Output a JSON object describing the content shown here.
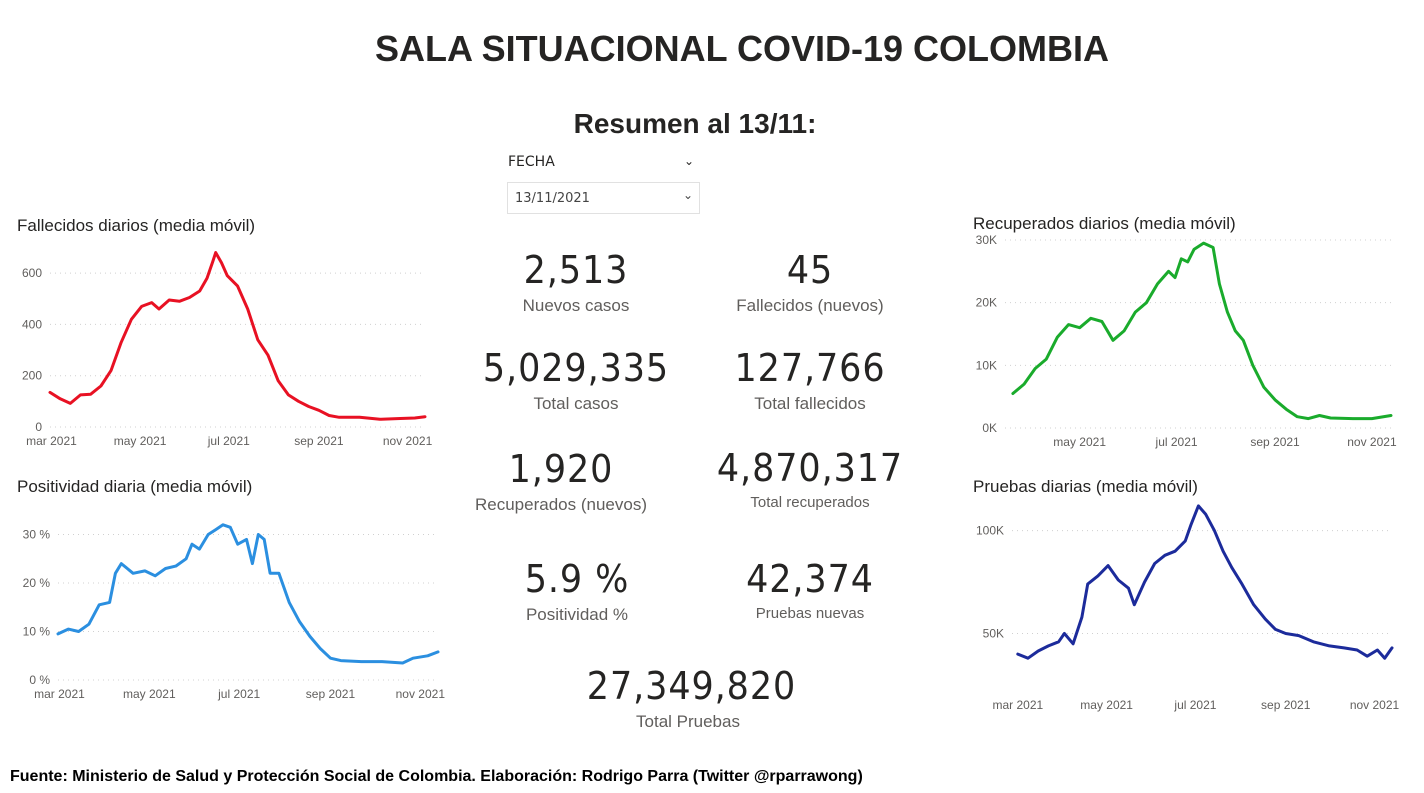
{
  "header": {
    "title": "SALA SITUACIONAL COVID-19 COLOMBIA",
    "subtitle": "Resumen al 13/11:"
  },
  "slicer": {
    "label": "FECHA",
    "value": "13/11/2021"
  },
  "kpis": {
    "nuevos_casos": {
      "value": "2,513",
      "label": "Nuevos casos"
    },
    "fallecidos_nuevos": {
      "value": "45",
      "label": "Fallecidos (nuevos)"
    },
    "total_casos": {
      "value": "5,029,335",
      "label": "Total casos"
    },
    "total_fallecidos": {
      "value": "127,766",
      "label": "Total fallecidos"
    },
    "recuperados_nuevos": {
      "value": "1,920",
      "label": "Recuperados (nuevos)"
    },
    "total_recuperados": {
      "value": "4,870,317",
      "label": "Total recuperados"
    },
    "positividad": {
      "value": "5.9 %",
      "label": "Positividad %"
    },
    "pruebas_nuevas": {
      "value": "42,374",
      "label": "Pruebas nuevas"
    },
    "total_pruebas": {
      "value": "27,349,820",
      "label": "Total Pruebas"
    }
  },
  "chart_data": [
    {
      "id": "fallecidos",
      "type": "line",
      "title": "Fallecidos diarios (media móvil)",
      "color": "#e81123",
      "x_start": "2021-02-28",
      "x_end": "2021-11-13",
      "xticks": [
        "mar 2021",
        "may 2021",
        "jul 2021",
        "sep 2021",
        "nov 2021"
      ],
      "xtick_dates": [
        "2021-03-01",
        "2021-05-01",
        "2021-07-01",
        "2021-09-01",
        "2021-11-01"
      ],
      "yticks": [
        0,
        200,
        400,
        600
      ],
      "ytick_labels": [
        "0",
        "200",
        "400",
        "600"
      ],
      "ylim": [
        0,
        690
      ],
      "points": [
        [
          "2021-02-28",
          135
        ],
        [
          "2021-03-07",
          110
        ],
        [
          "2021-03-14",
          92
        ],
        [
          "2021-03-21",
          125
        ],
        [
          "2021-03-28",
          128
        ],
        [
          "2021-04-04",
          160
        ],
        [
          "2021-04-11",
          220
        ],
        [
          "2021-04-18",
          330
        ],
        [
          "2021-04-25",
          420
        ],
        [
          "2021-05-02",
          470
        ],
        [
          "2021-05-09",
          485
        ],
        [
          "2021-05-14",
          460
        ],
        [
          "2021-05-21",
          495
        ],
        [
          "2021-05-28",
          490
        ],
        [
          "2021-06-04",
          505
        ],
        [
          "2021-06-11",
          530
        ],
        [
          "2021-06-16",
          580
        ],
        [
          "2021-06-20",
          645
        ],
        [
          "2021-06-22",
          680
        ],
        [
          "2021-06-26",
          640
        ],
        [
          "2021-06-30",
          590
        ],
        [
          "2021-07-07",
          550
        ],
        [
          "2021-07-14",
          460
        ],
        [
          "2021-07-21",
          340
        ],
        [
          "2021-07-28",
          280
        ],
        [
          "2021-08-04",
          180
        ],
        [
          "2021-08-11",
          125
        ],
        [
          "2021-08-18",
          100
        ],
        [
          "2021-08-25",
          80
        ],
        [
          "2021-09-01",
          65
        ],
        [
          "2021-09-08",
          45
        ],
        [
          "2021-09-15",
          38
        ],
        [
          "2021-09-29",
          38
        ],
        [
          "2021-10-13",
          30
        ],
        [
          "2021-10-27",
          33
        ],
        [
          "2021-11-06",
          35
        ],
        [
          "2021-11-13",
          40
        ]
      ]
    },
    {
      "id": "positividad",
      "type": "line",
      "title": "Positividad diaria (media móvil)",
      "color": "#2b8fe0",
      "x_start": "2021-02-28",
      "x_end": "2021-11-13",
      "xticks": [
        "mar 2021",
        "may 2021",
        "jul 2021",
        "sep 2021",
        "nov 2021"
      ],
      "xtick_dates": [
        "2021-03-01",
        "2021-05-01",
        "2021-07-01",
        "2021-09-01",
        "2021-11-01"
      ],
      "yticks": [
        0,
        10,
        20,
        30
      ],
      "ytick_labels": [
        "0 %",
        "10 %",
        "20 %",
        "30 %"
      ],
      "ylim": [
        0,
        33
      ],
      "points": [
        [
          "2021-02-28",
          9.5
        ],
        [
          "2021-03-07",
          10.5
        ],
        [
          "2021-03-14",
          10
        ],
        [
          "2021-03-21",
          11.5
        ],
        [
          "2021-03-28",
          15.5
        ],
        [
          "2021-04-04",
          16
        ],
        [
          "2021-04-08",
          22
        ],
        [
          "2021-04-12",
          24
        ],
        [
          "2021-04-20",
          22
        ],
        [
          "2021-04-28",
          22.5
        ],
        [
          "2021-05-05",
          21.5
        ],
        [
          "2021-05-12",
          23
        ],
        [
          "2021-05-19",
          23.5
        ],
        [
          "2021-05-26",
          25
        ],
        [
          "2021-05-30",
          28
        ],
        [
          "2021-06-04",
          27
        ],
        [
          "2021-06-10",
          30
        ],
        [
          "2021-06-15",
          31
        ],
        [
          "2021-06-20",
          32
        ],
        [
          "2021-06-25",
          31.5
        ],
        [
          "2021-06-30",
          28
        ],
        [
          "2021-07-06",
          29
        ],
        [
          "2021-07-10",
          24
        ],
        [
          "2021-07-14",
          30
        ],
        [
          "2021-07-18",
          29
        ],
        [
          "2021-07-22",
          22
        ],
        [
          "2021-07-28",
          22
        ],
        [
          "2021-08-04",
          16
        ],
        [
          "2021-08-11",
          12
        ],
        [
          "2021-08-18",
          9
        ],
        [
          "2021-08-25",
          6.5
        ],
        [
          "2021-09-01",
          4.5
        ],
        [
          "2021-09-08",
          4
        ],
        [
          "2021-09-22",
          3.8
        ],
        [
          "2021-10-06",
          3.8
        ],
        [
          "2021-10-20",
          3.5
        ],
        [
          "2021-10-27",
          4.5
        ],
        [
          "2021-11-06",
          5
        ],
        [
          "2021-11-13",
          5.8
        ]
      ]
    },
    {
      "id": "recuperados",
      "type": "line",
      "title": "Recuperados diarios (media móvil)",
      "color": "#1aab2c",
      "x_start": "2021-03-15",
      "x_end": "2021-11-13",
      "xticks": [
        "may 2021",
        "jul 2021",
        "sep 2021",
        "nov 2021"
      ],
      "xtick_dates": [
        "2021-05-01",
        "2021-07-01",
        "2021-09-01",
        "2021-11-01"
      ],
      "yticks": [
        0,
        10000,
        20000,
        30000
      ],
      "ytick_labels": [
        "0K",
        "10K",
        "20K",
        "30K"
      ],
      "ylim": [
        0,
        30000
      ],
      "points": [
        [
          "2021-03-20",
          5500
        ],
        [
          "2021-03-27",
          7000
        ],
        [
          "2021-04-03",
          9500
        ],
        [
          "2021-04-10",
          11000
        ],
        [
          "2021-04-17",
          14500
        ],
        [
          "2021-04-24",
          16500
        ],
        [
          "2021-05-01",
          16000
        ],
        [
          "2021-05-08",
          17500
        ],
        [
          "2021-05-15",
          17000
        ],
        [
          "2021-05-22",
          14000
        ],
        [
          "2021-05-29",
          15500
        ],
        [
          "2021-06-05",
          18500
        ],
        [
          "2021-06-12",
          20000
        ],
        [
          "2021-06-19",
          23000
        ],
        [
          "2021-06-26",
          25000
        ],
        [
          "2021-06-30",
          24000
        ],
        [
          "2021-07-04",
          27000
        ],
        [
          "2021-07-08",
          26500
        ],
        [
          "2021-07-12",
          28500
        ],
        [
          "2021-07-18",
          29500
        ],
        [
          "2021-07-24",
          28800
        ],
        [
          "2021-07-28",
          23000
        ],
        [
          "2021-08-02",
          18500
        ],
        [
          "2021-08-07",
          15500
        ],
        [
          "2021-08-12",
          14000
        ],
        [
          "2021-08-18",
          10000
        ],
        [
          "2021-08-25",
          6500
        ],
        [
          "2021-09-01",
          4500
        ],
        [
          "2021-09-08",
          3000
        ],
        [
          "2021-09-15",
          1800
        ],
        [
          "2021-09-22",
          1500
        ],
        [
          "2021-09-29",
          2000
        ],
        [
          "2021-10-06",
          1600
        ],
        [
          "2021-10-20",
          1500
        ],
        [
          "2021-11-01",
          1500
        ],
        [
          "2021-11-13",
          2000
        ]
      ]
    },
    {
      "id": "pruebas",
      "type": "line",
      "title": "Pruebas diarias (media móvil)",
      "color": "#1c2b9b",
      "x_start": "2021-02-25",
      "x_end": "2021-11-13",
      "xticks": [
        "mar 2021",
        "may 2021",
        "jul 2021",
        "sep 2021",
        "nov 2021"
      ],
      "xtick_dates": [
        "2021-03-01",
        "2021-05-01",
        "2021-07-01",
        "2021-09-01",
        "2021-11-01"
      ],
      "yticks": [
        50000,
        100000
      ],
      "ytick_labels": [
        "50K",
        "100K"
      ],
      "ylim": [
        25000,
        110000
      ],
      "points": [
        [
          "2021-03-01",
          40000
        ],
        [
          "2021-03-08",
          38000
        ],
        [
          "2021-03-15",
          41500
        ],
        [
          "2021-03-22",
          44000
        ],
        [
          "2021-03-29",
          46000
        ],
        [
          "2021-04-02",
          50000
        ],
        [
          "2021-04-08",
          45000
        ],
        [
          "2021-04-14",
          58000
        ],
        [
          "2021-04-18",
          74000
        ],
        [
          "2021-04-25",
          78000
        ],
        [
          "2021-05-02",
          83000
        ],
        [
          "2021-05-09",
          76000
        ],
        [
          "2021-05-16",
          72000
        ],
        [
          "2021-05-20",
          64000
        ],
        [
          "2021-05-27",
          75000
        ],
        [
          "2021-06-03",
          84000
        ],
        [
          "2021-06-10",
          88000
        ],
        [
          "2021-06-17",
          90000
        ],
        [
          "2021-06-24",
          95000
        ],
        [
          "2021-06-28",
          103000
        ],
        [
          "2021-07-03",
          112000
        ],
        [
          "2021-07-08",
          108000
        ],
        [
          "2021-07-14",
          100000
        ],
        [
          "2021-07-20",
          90000
        ],
        [
          "2021-07-26",
          82000
        ],
        [
          "2021-08-02",
          74000
        ],
        [
          "2021-08-10",
          64000
        ],
        [
          "2021-08-18",
          57000
        ],
        [
          "2021-08-25",
          52000
        ],
        [
          "2021-09-01",
          50000
        ],
        [
          "2021-09-10",
          49000
        ],
        [
          "2021-09-20",
          46000
        ],
        [
          "2021-10-01",
          44000
        ],
        [
          "2021-10-11",
          43000
        ],
        [
          "2021-10-20",
          42000
        ],
        [
          "2021-10-27",
          39000
        ],
        [
          "2021-11-03",
          42000
        ],
        [
          "2021-11-08",
          38000
        ],
        [
          "2021-11-13",
          43000
        ]
      ]
    }
  ],
  "footer": {
    "source": "Fuente: Ministerio de Salud y Protección Social de Colombia. Elaboración: Rodrigo Parra (Twitter @rparrawong)"
  }
}
